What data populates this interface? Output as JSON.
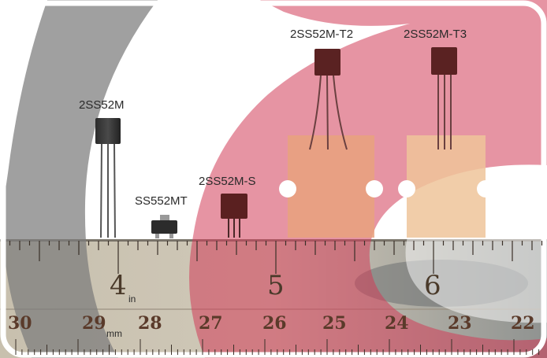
{
  "parts": {
    "p1": "2SS52M",
    "p2": "SS552MT",
    "p3": "2SS52M-S",
    "p4": "2SS52M-T2",
    "p5": "2SS52M-T3"
  },
  "ruler": {
    "inches": [
      "4",
      "5",
      "6"
    ],
    "inch_unit": "in",
    "mm_values": [
      "30",
      "29",
      "28",
      "27",
      "26",
      "25",
      "24",
      "23",
      "22"
    ],
    "mm_unit": "mm"
  },
  "colors": {
    "watermark_red": "#d23c58",
    "watermark_gray": "#8a8a8a",
    "ruler_base": "#c8c2b4",
    "tape": "#e8a080"
  }
}
